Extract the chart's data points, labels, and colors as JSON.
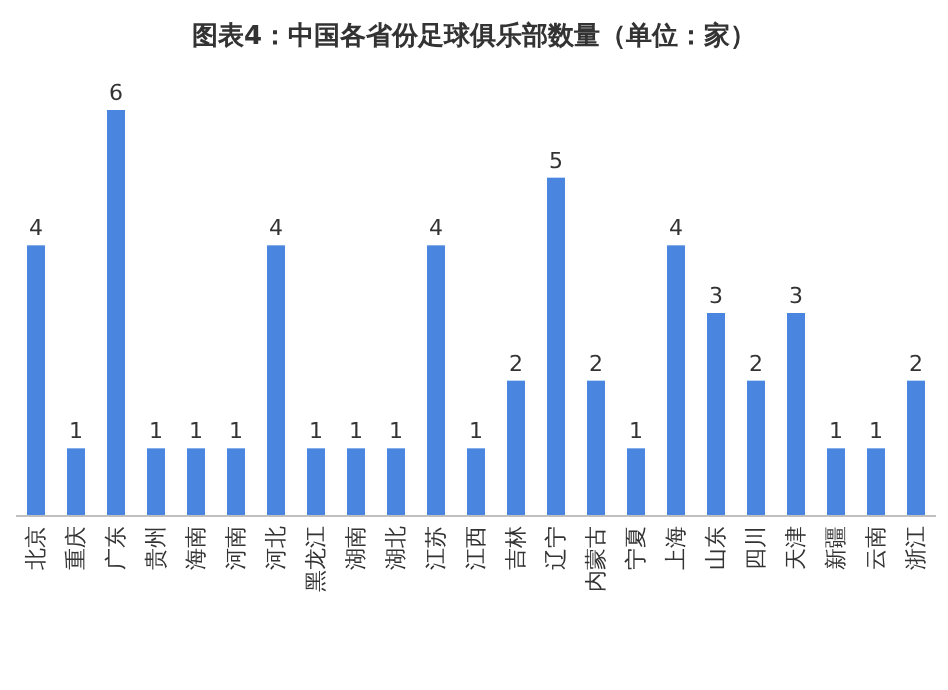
{
  "chart_data": {
    "type": "bar",
    "title": "图表4：中国各省份足球俱乐部数量（单位：家）",
    "categories": [
      "北京",
      "重庆",
      "广东",
      "贵州",
      "海南",
      "河南",
      "河北",
      "黑龙江",
      "湖南",
      "湖北",
      "江苏",
      "江西",
      "吉林",
      "辽宁",
      "内蒙古",
      "宁夏",
      "上海",
      "山东",
      "四川",
      "天津",
      "新疆",
      "云南",
      "浙江"
    ],
    "values": [
      4,
      1,
      6,
      1,
      1,
      1,
      4,
      1,
      1,
      1,
      4,
      1,
      2,
      5,
      2,
      1,
      4,
      3,
      2,
      3,
      1,
      1,
      2
    ],
    "color": "#4a86e0",
    "data_labels": true
  }
}
